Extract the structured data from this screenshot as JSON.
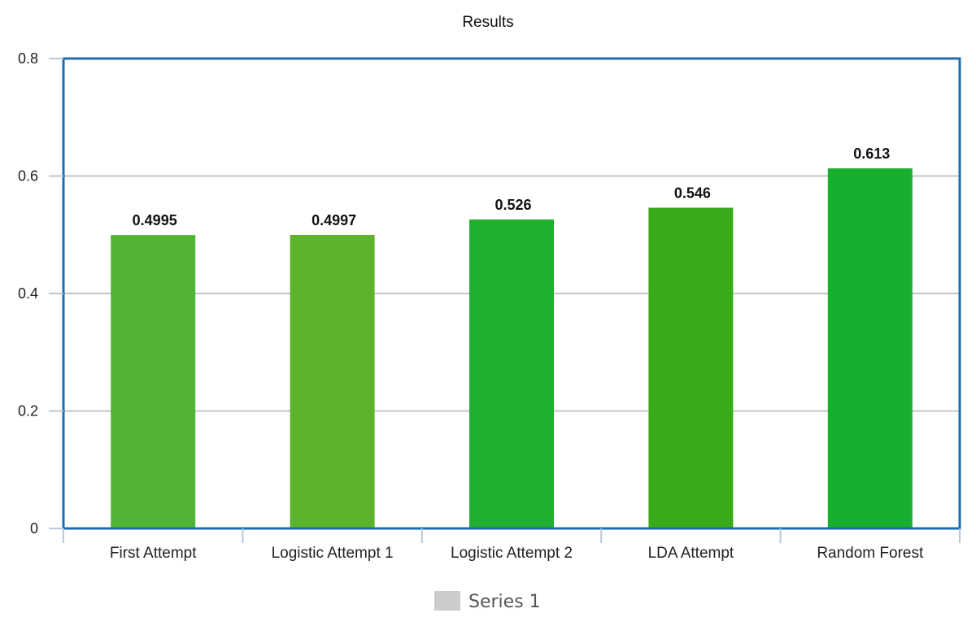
{
  "chart_data": {
    "type": "bar",
    "title": "Results",
    "xlabel": "",
    "ylabel": "",
    "ylim": [
      0,
      0.8
    ],
    "yticks": [
      "0",
      "0.2",
      "0.4",
      "0.6",
      "0.8"
    ],
    "categories": [
      "First Attempt",
      "Logistic Attempt 1",
      "Logistic Attempt 2",
      "LDA Attempt",
      "Random Forest"
    ],
    "series": [
      {
        "name": "Series 1",
        "values": [
          0.4995,
          0.4997,
          0.526,
          0.546,
          0.613
        ],
        "value_labels": [
          "0.4995",
          "0.4997",
          "0.526",
          "0.546",
          "0.613"
        ],
        "colors": [
          "#52b435",
          "#5db42a",
          "#20b030",
          "#3aab18",
          "#18ae2e"
        ]
      }
    ],
    "legend": {
      "position": "bottom",
      "swatch_color": "#cccccc"
    },
    "grid": true,
    "plot_border_color": "#1c6eb4"
  }
}
